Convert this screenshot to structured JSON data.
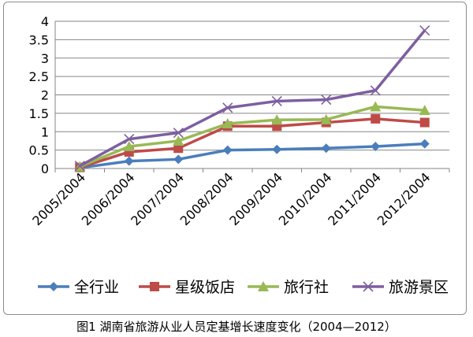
{
  "caption": "图1 湖南省旅游从业人员定基增长速度变化（2004—2012）",
  "chart_data": {
    "type": "line",
    "categories": [
      "2005/2004",
      "2006/2004",
      "2007/2004",
      "2008/2004",
      "2009/2004",
      "2010/2004",
      "2011/2004",
      "2012/2004"
    ],
    "yticks": [
      "0",
      "0.5",
      "1",
      "1.5",
      "2",
      "2.5",
      "3",
      "3.5",
      "4"
    ],
    "ylim": [
      0,
      4
    ],
    "grid": true,
    "legend_position": "bottom",
    "series": [
      {
        "name": "全行业",
        "color": "#4a7ebb",
        "marker": "diamond",
        "values": [
          0.02,
          0.2,
          0.25,
          0.5,
          0.52,
          0.55,
          0.6,
          0.67
        ]
      },
      {
        "name": "星级饭店",
        "color": "#be4b48",
        "marker": "square",
        "values": [
          0.03,
          0.45,
          0.55,
          1.15,
          1.15,
          1.25,
          1.35,
          1.25
        ]
      },
      {
        "name": "旅行社",
        "color": "#98b954",
        "marker": "triangle",
        "values": [
          0.05,
          0.6,
          0.75,
          1.22,
          1.32,
          1.33,
          1.68,
          1.58
        ]
      },
      {
        "name": "旅游景区",
        "color": "#7d5fa0",
        "marker": "x",
        "values": [
          0.07,
          0.8,
          0.97,
          1.65,
          1.83,
          1.87,
          2.12,
          3.75
        ]
      }
    ]
  }
}
